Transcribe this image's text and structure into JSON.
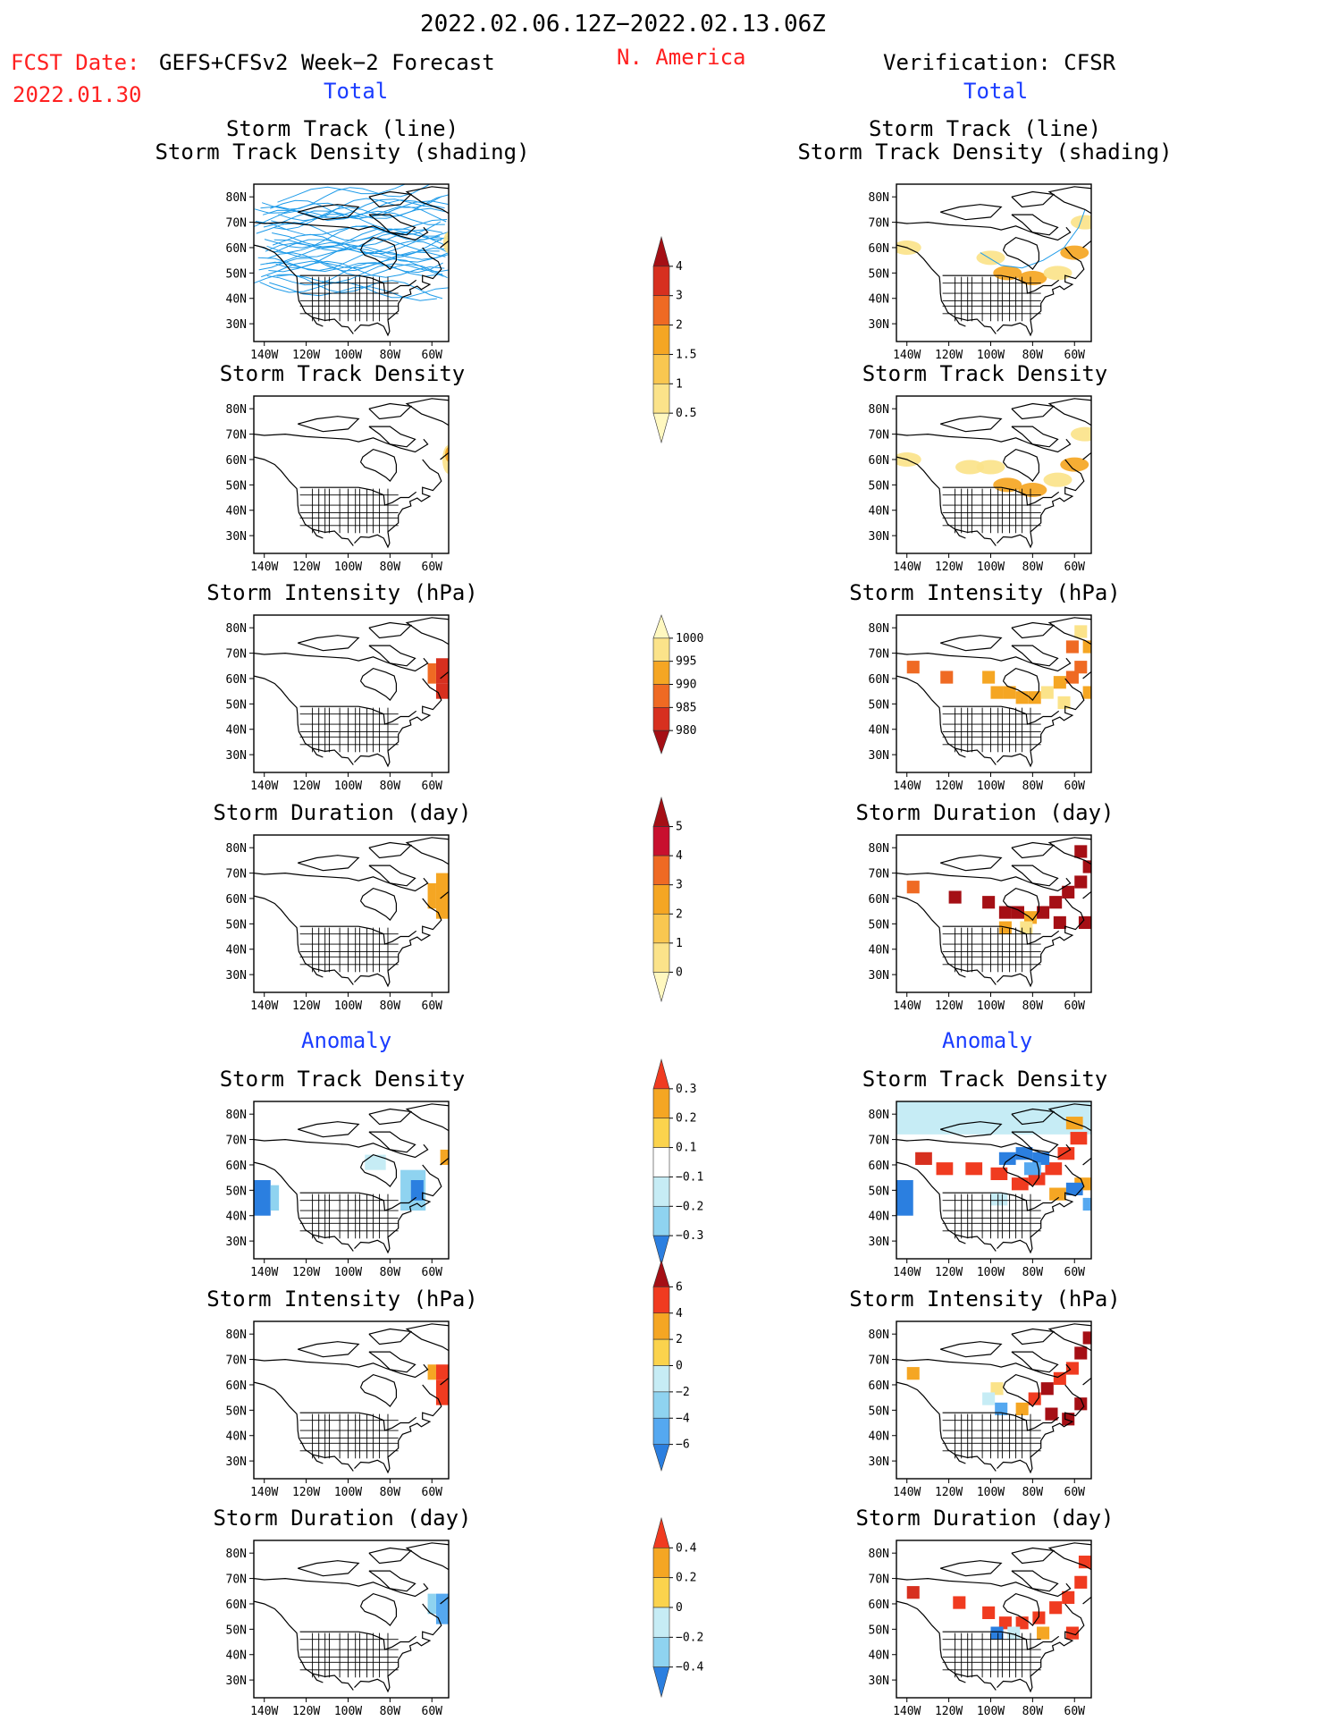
{
  "header": {
    "date_range": "2022.02.06.12Z−2022.02.13.06Z",
    "fcst_label": "FCST Date:",
    "fcst_date": "2022.01.30",
    "model": "GEFS+CFSv2 Week−2 Forecast",
    "region": "N. America",
    "verification": "Verification: CFSR"
  },
  "sections": {
    "total": "Total",
    "anomaly": "Anomaly"
  },
  "panel_titles": {
    "track_line": "Storm Track (line)",
    "track_shading": "Storm Track Density (shading)",
    "density": "Storm Track Density",
    "intensity": "Storm Intensity (hPa)",
    "duration": "Storm Duration (day)"
  },
  "axes": {
    "lat_labels": [
      "80N",
      "70N",
      "60N",
      "50N",
      "40N",
      "30N"
    ],
    "lon_labels": [
      "140W",
      "120W",
      "100W",
      "80W",
      "60W"
    ]
  },
  "colorbars": [
    {
      "id": "density-total",
      "labels": [
        "4",
        "3",
        "2",
        "1.5",
        "1",
        "0.5"
      ],
      "colors": [
        "#a50f15",
        "#d7301f",
        "#ef6a23",
        "#f5a623",
        "#f9c750",
        "#fbe38a",
        "#fff8c0"
      ]
    },
    {
      "id": "intensity-total",
      "labels": [
        "1000",
        "995",
        "990",
        "985",
        "980"
      ],
      "colors": [
        "#fff8c0",
        "#fbe38a",
        "#f5a623",
        "#ef6a23",
        "#d7301f",
        "#a50f15"
      ]
    },
    {
      "id": "duration-total",
      "labels": [
        "5",
        "4",
        "3",
        "2",
        "1",
        "0"
      ],
      "colors": [
        "#a50f15",
        "#c8102e",
        "#ef6a23",
        "#f5a623",
        "#f9c750",
        "#fbe38a",
        "#fff8c0"
      ]
    },
    {
      "id": "density-anom",
      "labels": [
        "0.3",
        "0.2",
        "0.1",
        "−0.1",
        "−0.2",
        "−0.3"
      ],
      "colors": [
        "#f03b20",
        "#f5a623",
        "#fbd34d",
        "#ffffff",
        "#c6ecf5",
        "#8fd3f0",
        "#2b7fe0"
      ]
    },
    {
      "id": "intensity-anom",
      "labels": [
        "6",
        "4",
        "2",
        "0",
        "−2",
        "−4",
        "−6"
      ],
      "colors": [
        "#a50f15",
        "#f03b20",
        "#f5a623",
        "#fbd34d",
        "#c6ecf5",
        "#8fd3f0",
        "#55a8f0",
        "#2b7fe0"
      ]
    },
    {
      "id": "duration-anom",
      "labels": [
        "0.4",
        "0.2",
        "0",
        "−0.2",
        "−0.4"
      ],
      "colors": [
        "#f03b20",
        "#f5a623",
        "#fbd34d",
        "#c6ecf5",
        "#8fd3f0",
        "#2b7fe0"
      ]
    }
  ],
  "colors": {
    "red_text": "#ff2020",
    "blue_text": "#1a3cff",
    "track_line": "#1e9be9",
    "yellow": "#fbe38a",
    "orange": "#f5a623",
    "dark_orange": "#ef6a23",
    "red": "#d7301f",
    "dark_red": "#a50f15",
    "light_blue": "#c6ecf5",
    "blue": "#2b7fe0"
  }
}
